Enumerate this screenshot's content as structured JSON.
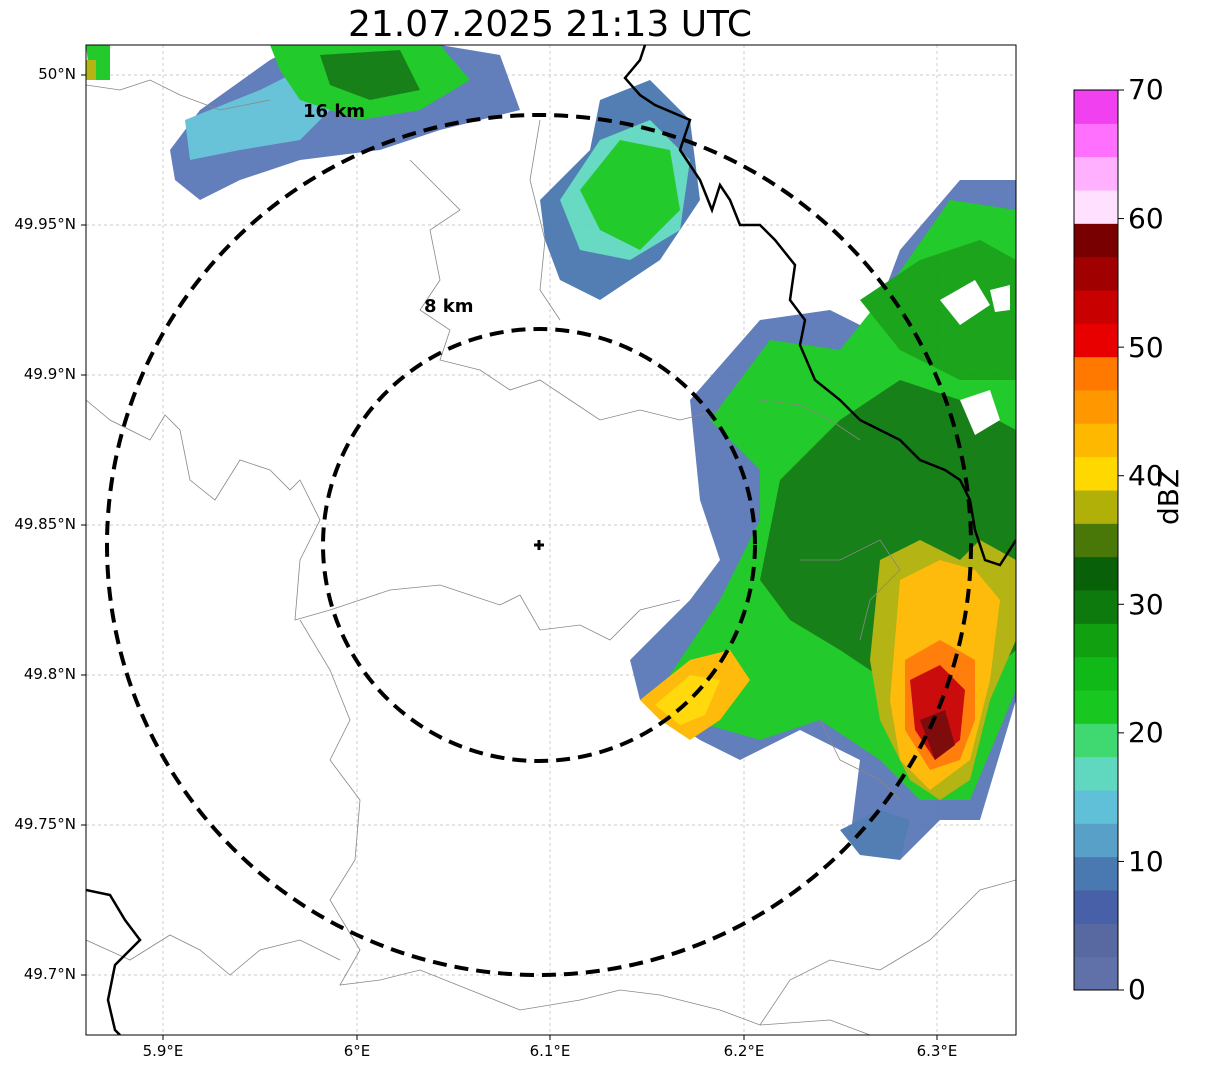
{
  "title": "21.07.2025 21:13 UTC",
  "map": {
    "x_axis": {
      "labels": [
        "5.9°E",
        "6°E",
        "6.1°E",
        "6.2°E",
        "6.3°E"
      ]
    },
    "y_axis": {
      "labels": [
        "50°N",
        "49.95°N",
        "49.9°N",
        "49.85°N",
        "49.8°N",
        "49.75°N",
        "49.7°N"
      ]
    },
    "range_rings": [
      {
        "label": "8 km"
      },
      {
        "label": "16 km"
      }
    ],
    "radar_site_marker": "cross-icon",
    "gridlines": true
  },
  "colorbar": {
    "title": "dBZ",
    "ticks": [
      "0",
      "10",
      "20",
      "30",
      "40",
      "50",
      "60",
      "70"
    ],
    "colors": [
      "#6070a8",
      "#5868a0",
      "#4860a8",
      "#4a78b0",
      "#58a0c8",
      "#60c0d8",
      "#60d8c0",
      "#40d870",
      "#18c820",
      "#10b818",
      "#10a010",
      "#0c7a0c",
      "#086008",
      "#4a7808",
      "#b0b008",
      "#ffd800",
      "#ffb800",
      "#ff9800",
      "#ff7800",
      "#e80000",
      "#c80000",
      "#a00000",
      "#780000",
      "#ffe0ff",
      "#ffb0ff",
      "#ff70ff",
      "#f040f0"
    ]
  }
}
